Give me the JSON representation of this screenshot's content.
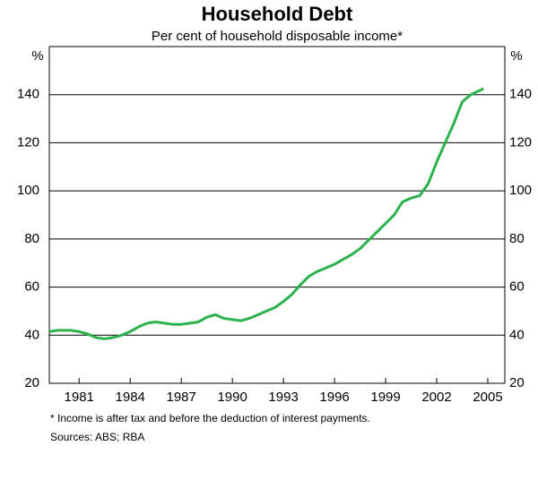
{
  "chart_data": {
    "type": "line",
    "title": "Household Debt",
    "subtitle": "Per cent of household disposable income*",
    "y_unit": "%",
    "footnote": "* Income is after tax and before the deduction of interest payments.",
    "sources": "Sources: ABS; RBA",
    "x": [
      1979.25,
      1979.75,
      1980.5,
      1981,
      1981.5,
      1982,
      1982.5,
      1983,
      1983.5,
      1984,
      1984.5,
      1985,
      1985.5,
      1986,
      1986.5,
      1987,
      1987.5,
      1988,
      1988.5,
      1989,
      1989.5,
      1990,
      1990.5,
      1991,
      1991.5,
      1992,
      1992.5,
      1993,
      1993.5,
      1994,
      1994.5,
      1995,
      1995.5,
      1996,
      1996.5,
      1997,
      1997.5,
      1998,
      1998.5,
      1999,
      1999.5,
      2000,
      2000.5,
      2001,
      2001.5,
      2002,
      2002.5,
      2003,
      2003.5,
      2004,
      2004.75
    ],
    "series": [
      {
        "name": "Household debt",
        "color": "#2bb24c",
        "values": [
          41.5,
          42,
          42,
          41.5,
          40.5,
          39,
          38.5,
          39,
          40,
          41.5,
          43.5,
          45,
          45.5,
          45,
          44.5,
          44.5,
          45,
          45.5,
          47.5,
          48.5,
          47,
          46.5,
          46,
          47,
          48.5,
          50,
          51.5,
          54,
          57,
          61,
          64.5,
          66.5,
          68,
          69.5,
          71.5,
          73.5,
          76,
          79.5,
          83,
          86.5,
          90,
          95.5,
          97,
          98,
          103,
          112,
          120,
          128,
          137,
          140,
          142.5
        ]
      }
    ],
    "xlim": [
      1979.25,
      2006
    ],
    "xticks": [
      1981,
      1984,
      1987,
      1990,
      1993,
      1996,
      1999,
      2002,
      2005
    ],
    "ylim": [
      20,
      160
    ],
    "yticks": [
      20,
      40,
      60,
      80,
      100,
      120,
      140
    ],
    "grid": true
  }
}
